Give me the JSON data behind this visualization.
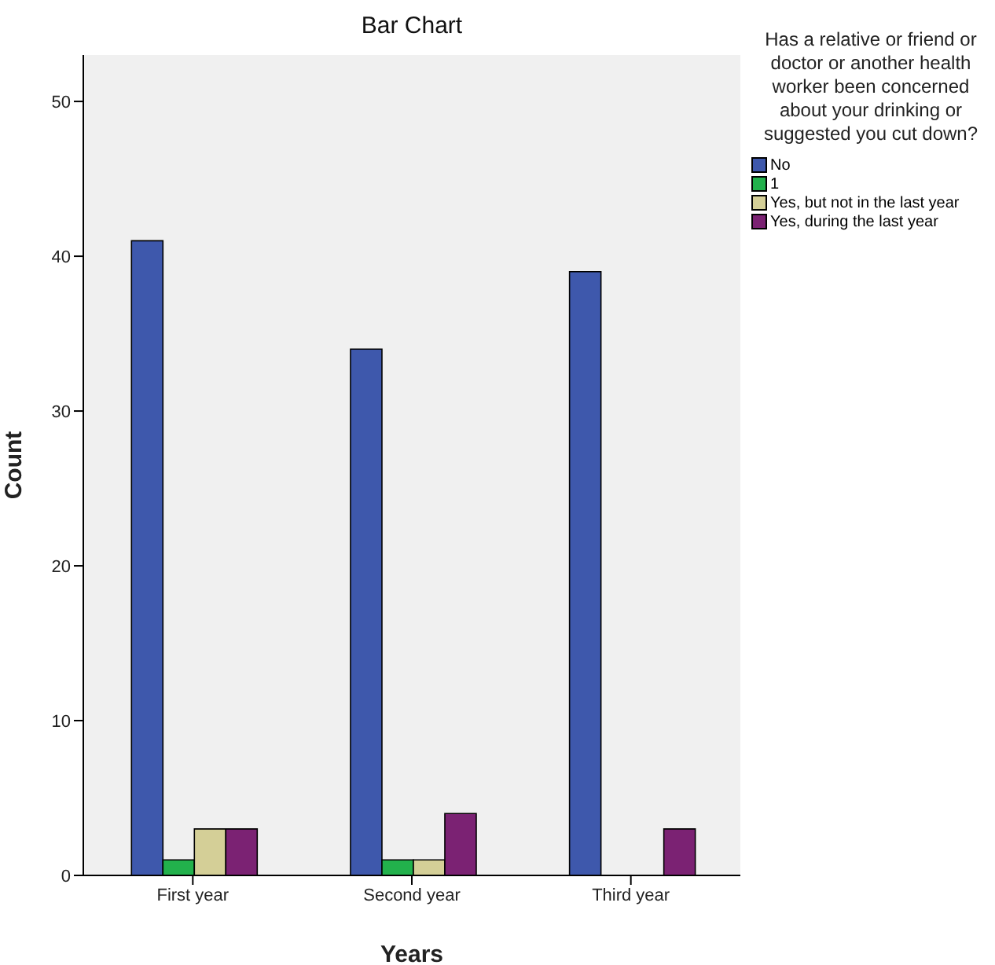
{
  "chart_data": {
    "type": "bar",
    "title": "Bar Chart",
    "xlabel": "Years",
    "ylabel": "Count",
    "legend_title": "Has a relative or friend or doctor or another health worker been concerned about your drinking or suggested you cut down?",
    "categories": [
      "First year",
      "Second year",
      "Third year"
    ],
    "series": [
      {
        "name": "No",
        "color": "#3e58ac",
        "values": [
          41,
          34,
          39
        ]
      },
      {
        "name": "1",
        "color": "#22b14c",
        "values": [
          1,
          1,
          null
        ]
      },
      {
        "name": "Yes, but not in the last year",
        "color": "#d4cf97",
        "values": [
          3,
          1,
          null
        ]
      },
      {
        "name": "Yes, during the last year",
        "color": "#7b2273",
        "values": [
          3,
          4,
          3
        ]
      }
    ],
    "ylim": [
      0,
      53
    ],
    "yticks": [
      0,
      10,
      20,
      30,
      40,
      50
    ],
    "grid": false,
    "legend": "top right"
  }
}
